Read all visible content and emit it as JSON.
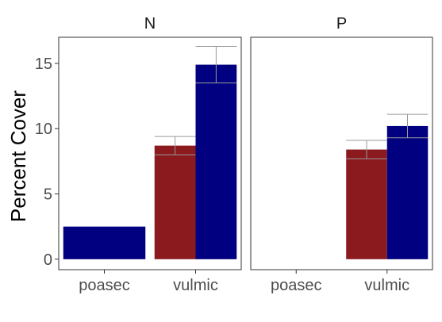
{
  "chart_data": {
    "type": "bar",
    "ylabel": "Percent Cover",
    "ylim": [
      -0.8,
      17
    ],
    "yticks": [
      0,
      5,
      10,
      15
    ],
    "categories": [
      "poasec",
      "vulmic"
    ],
    "fill_groups": [
      {
        "color": "#8b1a1f"
      },
      {
        "color": "#000080"
      }
    ],
    "facets": [
      {
        "title": "N",
        "bars": [
          {
            "category": "poasec",
            "group": 1,
            "value": 2.5,
            "err": null
          },
          {
            "category": "vulmic",
            "group": 0,
            "value": 8.7,
            "err": 0.7
          },
          {
            "category": "vulmic",
            "group": 1,
            "value": 14.9,
            "err": 1.4
          }
        ]
      },
      {
        "title": "P",
        "bars": [
          {
            "category": "vulmic",
            "group": 0,
            "value": 8.4,
            "err": 0.7
          },
          {
            "category": "vulmic",
            "group": 1,
            "value": 10.2,
            "err": 0.9
          }
        ]
      }
    ]
  }
}
